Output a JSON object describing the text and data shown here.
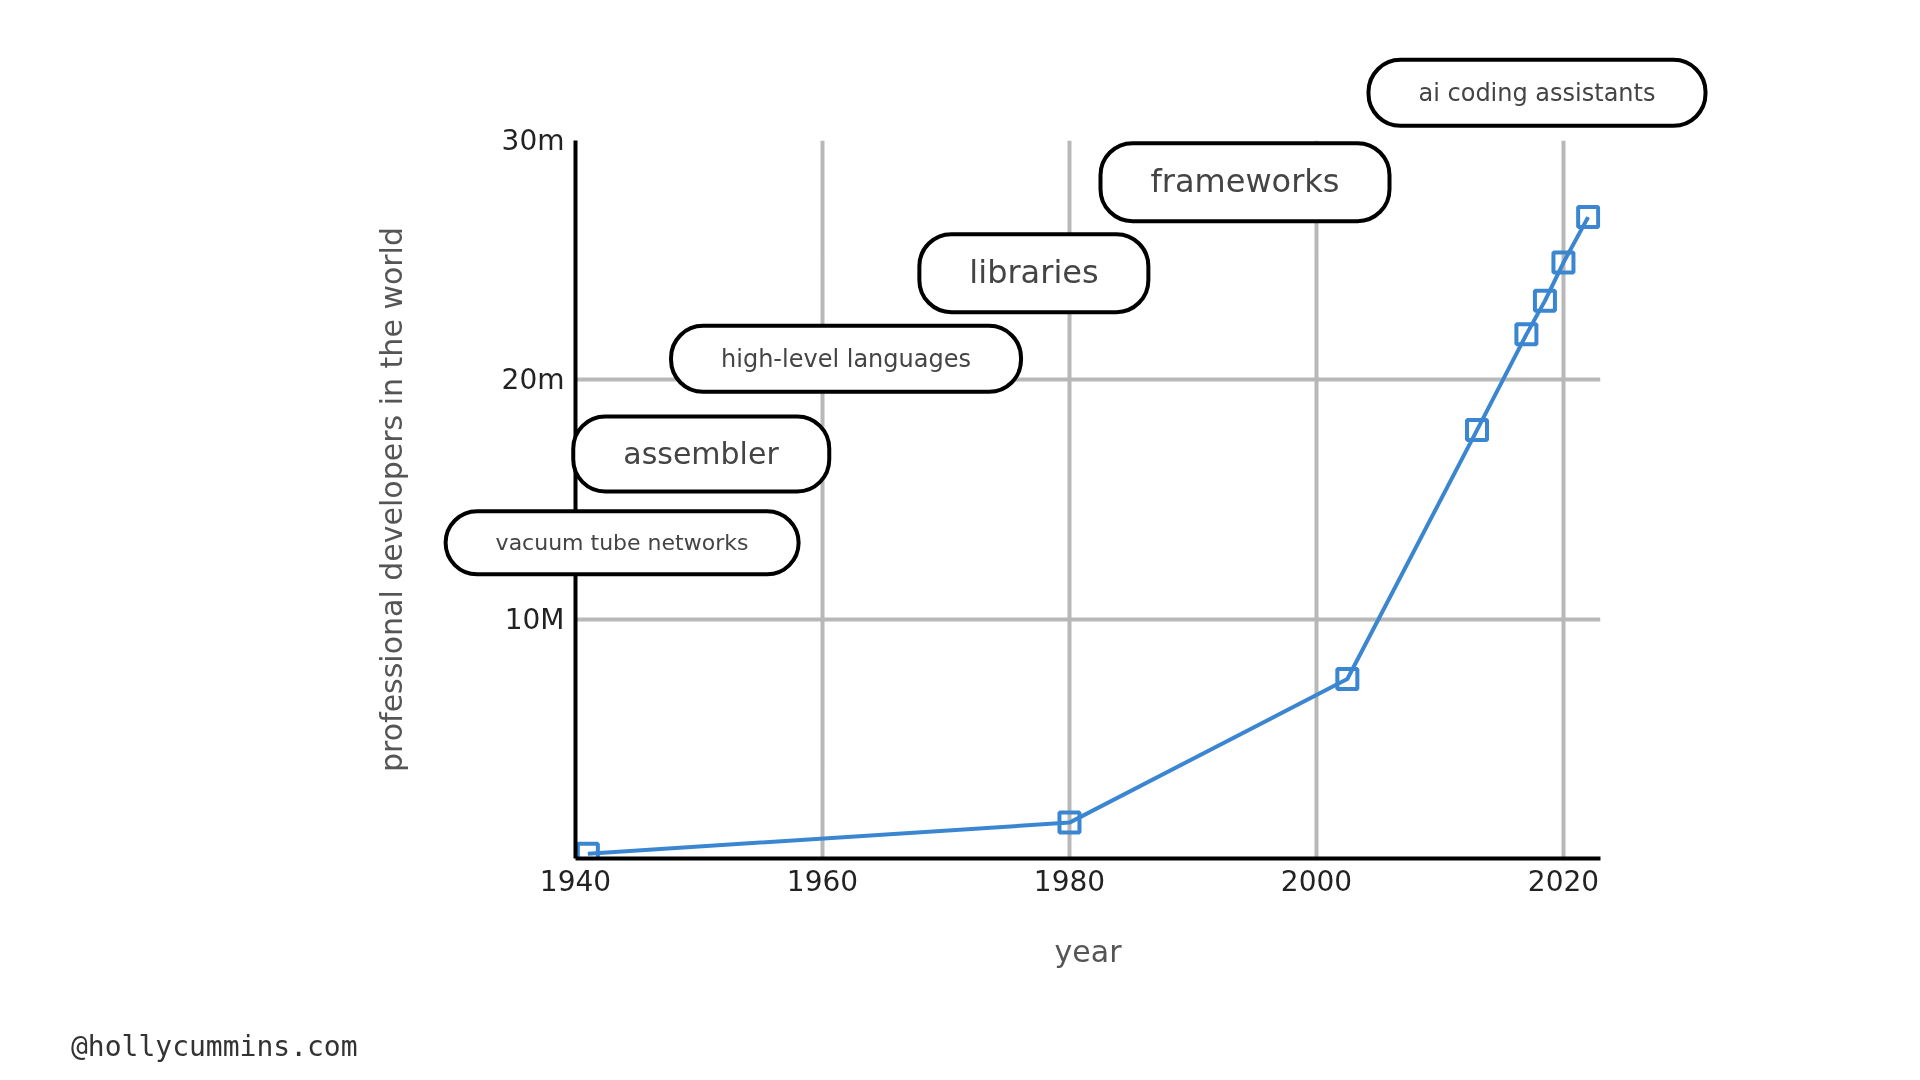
{
  "chart_data": {
    "type": "line",
    "xlabel": "year",
    "ylabel": "professional developers in the world",
    "x": [
      1941,
      1980,
      2002.5,
      2013,
      2017,
      2018.5,
      2020,
      2022
    ],
    "series": [
      {
        "color": "#3a86d0",
        "values": [
          0.2,
          1.5,
          7.5,
          17.9,
          21.9,
          23.3,
          24.9,
          26.8
        ]
      }
    ],
    "xlim": [
      1940,
      2023
    ],
    "ylim": [
      0,
      30
    ],
    "xticks": [
      1940,
      1960,
      1980,
      2000,
      2020
    ],
    "yticks": [
      {
        "value": 10,
        "label": "10M"
      },
      {
        "value": 20,
        "label": "20m"
      },
      {
        "value": 30,
        "label": "30m"
      }
    ],
    "grid": true,
    "marker": "square",
    "line_style": "solid",
    "annotations": [
      "vacuum tube networks",
      "assembler",
      "high-level languages",
      "libraries",
      "frameworks",
      "ai coding assistants",
      "@hollycummins.com"
    ]
  }
}
